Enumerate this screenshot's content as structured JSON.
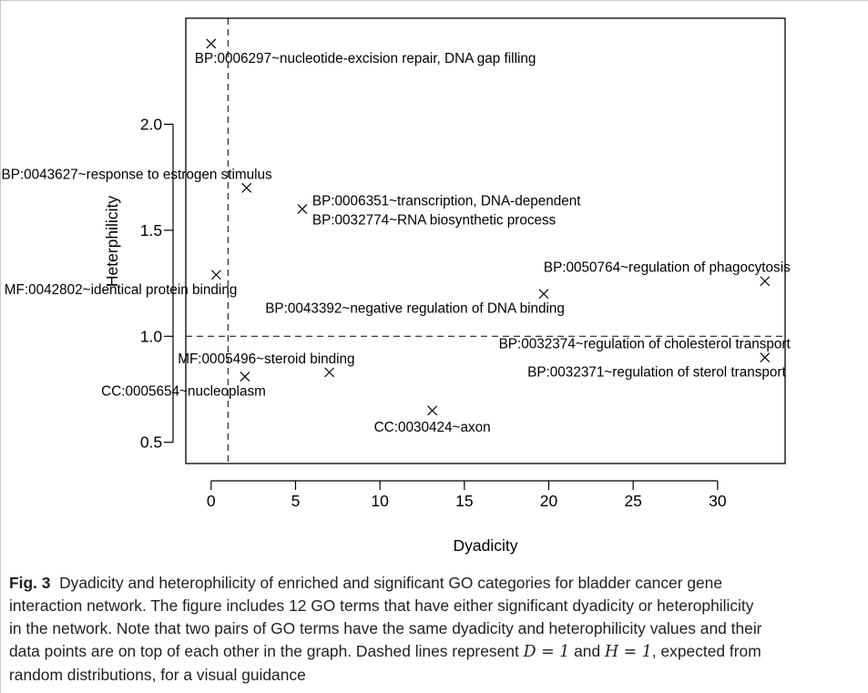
{
  "chart_data": {
    "type": "scatter",
    "xlabel": "Dyadicity",
    "ylabel": "Heterphilicity",
    "xlim": [
      -1.5,
      34
    ],
    "ylim": [
      0.4,
      2.5
    ],
    "xticks": [
      "0",
      "5",
      "10",
      "15",
      "20",
      "25",
      "30"
    ],
    "xtick_values": [
      0,
      5,
      10,
      15,
      20,
      25,
      30
    ],
    "yticks": [
      "0.5",
      "1.0",
      "1.5",
      "2.0"
    ],
    "ytick_values": [
      0.5,
      1.0,
      1.5,
      2.0
    ],
    "reference_lines": [
      {
        "axis": "x",
        "value": 1,
        "style": "dashed"
      },
      {
        "axis": "y",
        "value": 1,
        "style": "dashed"
      }
    ],
    "marker": "×",
    "points": [
      {
        "x": 0.0,
        "y": 2.38,
        "label": "BP:0006297~nucleotide-excision repair, DNA gap filling",
        "label_pos": "below-right"
      },
      {
        "x": 2.1,
        "y": 1.7,
        "label": "BP:0043627~response to estrogen stimulus",
        "label_pos": "above-left"
      },
      {
        "x": 5.4,
        "y": 1.6,
        "label": "BP:0006351~transcription, DNA-dependent",
        "label_pos": "right-up"
      },
      {
        "x": 5.4,
        "y": 1.6,
        "label": "BP:0032774~RNA biosynthetic process",
        "label_pos": "right-down"
      },
      {
        "x": 0.3,
        "y": 1.29,
        "label": "MF:0042802~identical protein binding",
        "label_pos": "below-left"
      },
      {
        "x": 32.8,
        "y": 1.26,
        "label": "BP:0050764~regulation of phagocytosis",
        "label_pos": "above-left"
      },
      {
        "x": 19.7,
        "y": 1.2,
        "label": "BP:0043392~negative regulation of DNA binding",
        "label_pos": "below-left"
      },
      {
        "x": 32.8,
        "y": 0.9,
        "label": "BP:0032374~regulation of cholesterol transport",
        "label_pos": "above-left"
      },
      {
        "x": 32.8,
        "y": 0.9,
        "label": "BP:0032371~regulation of sterol transport",
        "label_pos": "below-left"
      },
      {
        "x": 7.0,
        "y": 0.83,
        "label": "MF:0005496~steroid binding",
        "label_pos": "above-left"
      },
      {
        "x": 2.0,
        "y": 0.81,
        "label": "CC:0005654~nucleoplasm",
        "label_pos": "below-left"
      },
      {
        "x": 13.1,
        "y": 0.65,
        "label": "CC:0030424~axon",
        "label_pos": "below"
      }
    ]
  },
  "caption": {
    "fig_label": "Fig. 3",
    "text_part1": "Dyadicity and heterophilicity of enriched and significant GO categories for bladder cancer gene",
    "text_part2": "interaction network. The figure includes 12 GO terms that have either significant dyadicity or heterophilicity",
    "text_part3": "in the network. Note that two pairs of GO terms have the same dyadicity and heterophilicity values and their",
    "text_part4": "data points are on top of each other in the graph. Dashed lines represent",
    "d_eq": "D = 1",
    "and_word": "and",
    "h_eq": "H = 1",
    "text_part5": ", expected from",
    "text_part6": "random distributions, for a visual guidance"
  }
}
